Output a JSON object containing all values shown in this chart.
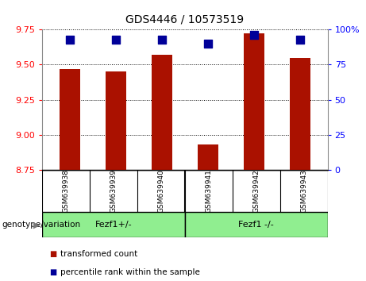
{
  "title": "GDS4446 / 10573519",
  "samples": [
    "GSM639938",
    "GSM639939",
    "GSM639940",
    "GSM639941",
    "GSM639942",
    "GSM639943"
  ],
  "transformed_counts": [
    9.47,
    9.45,
    9.57,
    8.93,
    9.72,
    9.55
  ],
  "percentile_ranks": [
    93,
    93,
    93,
    90,
    96,
    93
  ],
  "ylim_left": [
    8.75,
    9.75
  ],
  "ylim_right": [
    0,
    100
  ],
  "yticks_left": [
    8.75,
    9.0,
    9.25,
    9.5,
    9.75
  ],
  "yticks_right": [
    0,
    25,
    50,
    75,
    100
  ],
  "group1_label": "Fezf1+/-",
  "group2_label": "Fezf1 -/-",
  "group_color": "#90EE90",
  "group_boundary_idx": 3,
  "bar_color": "#AA1100",
  "dot_color": "#000099",
  "bar_width": 0.45,
  "dot_size": 55,
  "grid_linestyle": "dotted",
  "background_color": "#ffffff",
  "sample_box_color": "#cccccc",
  "legend_red_label": "transformed count",
  "legend_blue_label": "percentile rank within the sample",
  "genotype_label": "genotype/variation",
  "title_fontsize": 10,
  "tick_fontsize": 8,
  "label_fontsize": 7.5,
  "group_label_fontsize": 8,
  "sample_fontsize": 6.5
}
